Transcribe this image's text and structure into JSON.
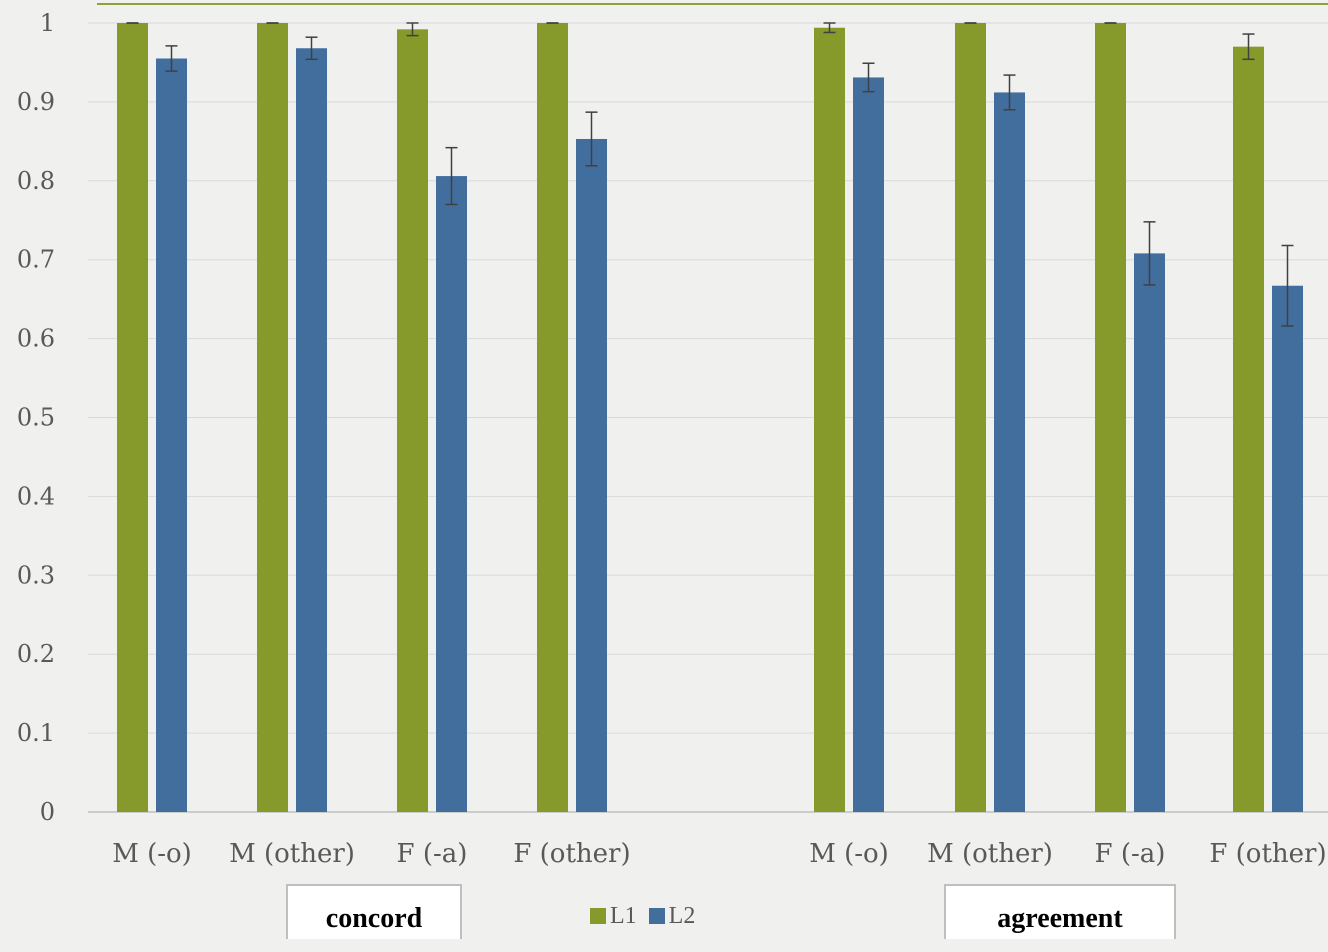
{
  "chart_data": {
    "type": "bar",
    "title": "",
    "xlabel": "",
    "ylabel": "",
    "ylim": [
      0,
      1
    ],
    "yticks": [
      "0",
      "0.1",
      "0.2",
      "0.3",
      "0.4",
      "0.5",
      "0.6",
      "0.7",
      "0.8",
      "0.9",
      "1"
    ],
    "grid": true,
    "legend_position": "bottom",
    "groups": [
      {
        "label": "concord",
        "categories": [
          "M (-o)",
          "M (other)",
          "F (-a)",
          "F (other)"
        ]
      },
      {
        "label": "agreement",
        "categories": [
          "M (-o)",
          "M (other)",
          "F (-a)",
          "F (other)"
        ]
      }
    ],
    "categories": [
      "M (-o)",
      "M (other)",
      "F (-a)",
      "F (other)",
      "M (-o)",
      "M (other)",
      "F (-a)",
      "F (other)"
    ],
    "series": [
      {
        "name": "L1",
        "color": "#859a2a",
        "values": [
          1.0,
          1.0,
          0.992,
          1.0,
          0.994,
          1.0,
          1.0,
          0.97
        ],
        "errors": [
          0.0,
          0.0,
          0.008,
          0.0,
          0.006,
          0.0,
          0.0,
          0.016
        ]
      },
      {
        "name": "L2",
        "color": "#426e9e",
        "values": [
          0.955,
          0.968,
          0.806,
          0.853,
          0.931,
          0.912,
          0.708,
          0.667
        ],
        "errors": [
          0.016,
          0.014,
          0.036,
          0.034,
          0.018,
          0.022,
          0.04,
          0.051
        ]
      }
    ]
  }
}
